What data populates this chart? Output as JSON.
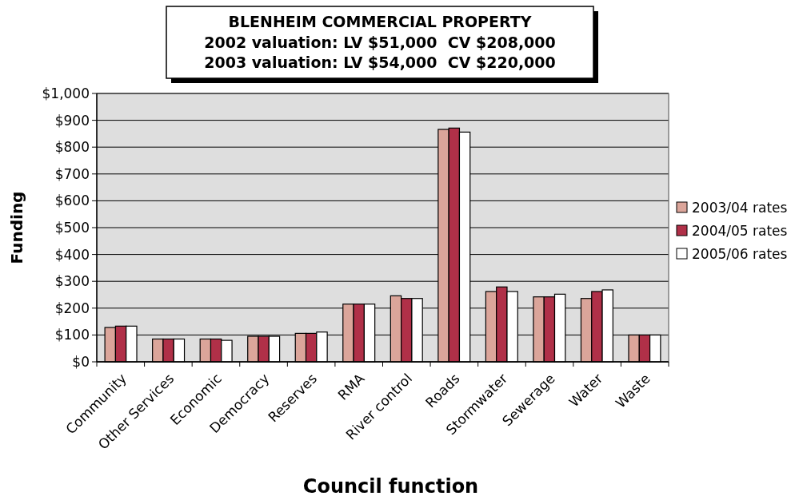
{
  "chart_data": {
    "type": "bar",
    "title": "BLENHEIM COMMERCIAL PROPERTY",
    "subtitle": "2002 valuation: LV $51,000  CV $208,000\n2003 valuation: LV $54,000  CV $220,000",
    "xlabel": "Council function",
    "ylabel": "Funding",
    "categories": [
      "Community",
      "Other Services",
      "Economic",
      "Democracy",
      "Reserves",
      "RMA",
      "River control",
      "Roads",
      "Stormwater",
      "Sewerage",
      "Water",
      "Waste"
    ],
    "series": [
      {
        "name": "2003/04 rates",
        "color": "#dba59a",
        "values": [
          128,
          85,
          85,
          95,
          106,
          215,
          246,
          866,
          262,
          242,
          236,
          100
        ]
      },
      {
        "name": "2004/05 rates",
        "color": "#b03048",
        "values": [
          133,
          85,
          85,
          95,
          106,
          215,
          236,
          871,
          279,
          242,
          262,
          100
        ]
      },
      {
        "name": "2005/06 rates",
        "color": "#ffffff",
        "values": [
          133,
          85,
          80,
          95,
          111,
          215,
          236,
          856,
          262,
          252,
          268,
          100
        ]
      }
    ],
    "ylim": [
      0,
      1000
    ],
    "yticks": [
      {
        "value": 0,
        "label": "$0"
      },
      {
        "value": 100,
        "label": "$100"
      },
      {
        "value": 200,
        "label": "$200"
      },
      {
        "value": 300,
        "label": "$300"
      },
      {
        "value": 400,
        "label": "$400"
      },
      {
        "value": 500,
        "label": "$500"
      },
      {
        "value": 600,
        "label": "$600"
      },
      {
        "value": 700,
        "label": "$700"
      },
      {
        "value": 800,
        "label": "$800"
      },
      {
        "value": 900,
        "label": "$900"
      },
      {
        "value": 1000,
        "label": "$1,000"
      }
    ],
    "grid": "y",
    "legend": "right"
  }
}
